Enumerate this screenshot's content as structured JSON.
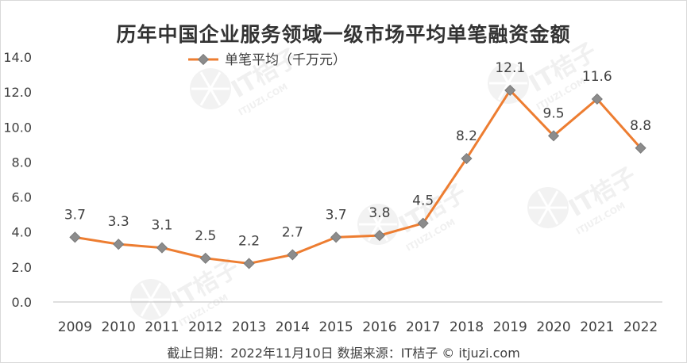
{
  "chart_data": {
    "type": "line",
    "title": "历年中国企业服务领域一级市场平均单笔融资金额",
    "categories": [
      "2009",
      "2010",
      "2011",
      "2012",
      "2013",
      "2014",
      "2015",
      "2016",
      "2017",
      "2018",
      "2019",
      "2020",
      "2021",
      "2022"
    ],
    "series": [
      {
        "name": "单笔平均（千万元）",
        "values": [
          3.7,
          3.3,
          3.1,
          2.5,
          2.2,
          2.7,
          3.7,
          3.8,
          4.5,
          8.2,
          12.1,
          9.5,
          11.6,
          8.8
        ],
        "labels": [
          "3.7",
          "3.3",
          "3.1",
          "2.5",
          "2.2",
          "2.7",
          "3.7",
          "3.8",
          "4.5",
          "8.2",
          "12.1",
          "9.5",
          "11.6",
          "8.8"
        ],
        "color": "#ED7D31",
        "marker_color": "#8C8C8C"
      }
    ],
    "ylim": [
      0,
      14
    ],
    "yticks": [
      "0.0",
      "2.0",
      "4.0",
      "6.0",
      "8.0",
      "10.0",
      "12.0",
      "14.0"
    ],
    "grid": false,
    "legend": "top-left"
  },
  "footer": {
    "source": "截止日期：2022年11月10日    数据来源：IT桔子 © itjuzi.com"
  },
  "watermark": {
    "brand": "IT桔子",
    "url": "ITJUZI.COM"
  }
}
